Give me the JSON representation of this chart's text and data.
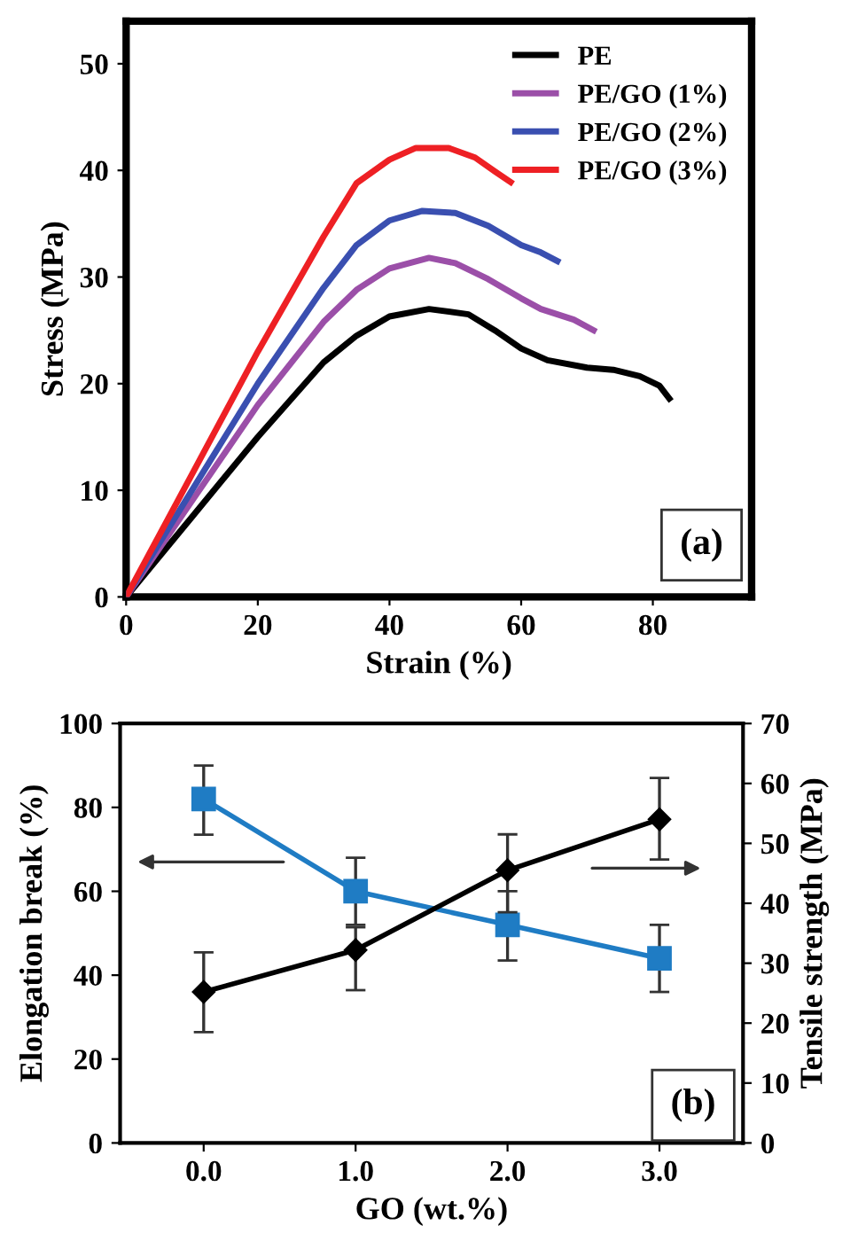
{
  "chart_data": [
    {
      "type": "line",
      "xlabel": "Strain (%)",
      "ylabel": "Stress (MPa)",
      "annotations": [
        "(a)"
      ],
      "xlim": [
        0,
        95
      ],
      "ylim": [
        0,
        54
      ],
      "xticks": [
        0,
        20,
        40,
        60,
        80
      ],
      "yticks": [
        0,
        10,
        20,
        30,
        40,
        50
      ],
      "legend": "top right",
      "grid": false,
      "line_style": "solid",
      "marker": "none",
      "series": [
        {
          "name": "PE",
          "color": "#000000",
          "x": [
            0,
            10,
            20,
            30,
            35,
            40,
            46,
            52,
            56,
            60,
            64,
            70,
            74,
            78,
            81,
            82.5
          ],
          "values": [
            0,
            7.5,
            15,
            22,
            24.5,
            26.3,
            27,
            26.5,
            25,
            23.3,
            22.2,
            21.5,
            21.3,
            20.7,
            19.8,
            18.6
          ]
        },
        {
          "name": "PE/GO (1%)",
          "color": "#9b4fa8",
          "x": [
            0,
            10,
            20,
            30,
            35,
            40,
            46,
            50,
            55,
            60,
            63,
            68,
            71
          ],
          "values": [
            0,
            9,
            18,
            25.8,
            28.8,
            30.8,
            31.8,
            31.3,
            29.8,
            28,
            27,
            26,
            25
          ]
        },
        {
          "name": "PE/GO (2%)",
          "color": "#3a4fb0",
          "x": [
            0,
            10,
            20,
            30,
            35,
            40,
            45,
            50,
            55,
            60,
            63,
            65.5
          ],
          "values": [
            0,
            10,
            20,
            29,
            33,
            35.3,
            36.2,
            36,
            34.8,
            33,
            32.3,
            31.5
          ]
        },
        {
          "name": "PE/GO (3%)",
          "color": "#ee2024",
          "x": [
            0,
            10,
            20,
            30,
            35,
            40,
            44,
            49,
            53,
            56,
            58.4
          ],
          "values": [
            0,
            11.5,
            23,
            33.8,
            38.8,
            41,
            42.1,
            42.1,
            41.2,
            39.9,
            38.9
          ]
        }
      ]
    },
    {
      "type": "line",
      "xlabel": "GO (wt.%)",
      "ylabel": "Elongation break (%)",
      "y2label": "Tensile strength (MPa)",
      "annotations": [
        "(b)"
      ],
      "x": [
        0,
        1,
        2,
        3
      ],
      "xlim": [
        -0.55,
        3.55
      ],
      "ylim": [
        0,
        100
      ],
      "y2lim": [
        0,
        70
      ],
      "xticks": [
        {
          "value": 0,
          "label": "0.0"
        },
        {
          "value": 1,
          "label": "1.0"
        },
        {
          "value": 2,
          "label": "2.0"
        },
        {
          "value": 3,
          "label": "3.0"
        }
      ],
      "yticks": [
        0,
        20,
        40,
        60,
        80,
        100
      ],
      "y2ticks": [
        0,
        10,
        20,
        30,
        40,
        50,
        60,
        70
      ],
      "grid": false,
      "legend": false,
      "line_style": "solid",
      "series": [
        {
          "color": "#1f7cc4",
          "marker": "square",
          "values": [
            82,
            60,
            52,
            44
          ],
          "errors": [
            [
              73.5,
              90
            ],
            [
              52,
              68
            ],
            [
              43.5,
              60
            ],
            [
              36,
              52
            ]
          ]
        },
        {
          "color": "#000000",
          "marker": "diamond",
          "axis": "y2",
          "values": [
            25.2,
            32.2,
            45.5,
            54
          ],
          "errors": [
            [
              18.5,
              31.8
            ],
            [
              25.5,
              36
            ],
            [
              38.5,
              51.5
            ],
            [
              47.3,
              60.9
            ]
          ]
        }
      ]
    }
  ]
}
